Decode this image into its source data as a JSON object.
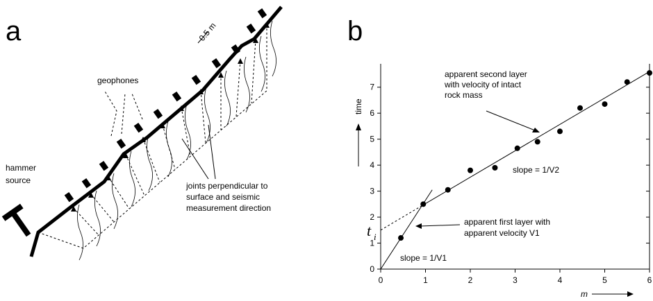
{
  "diagram": {
    "label": "a",
    "scale": "0.5 m",
    "geophones": "geophones",
    "hammer": [
      "hammer",
      "source"
    ],
    "joints": [
      "joints perpendicular to",
      "surface and seismic",
      "measurement direction"
    ]
  },
  "chart_data": {
    "type": "scatter",
    "panel_label": "b",
    "x": [
      0.45,
      0.95,
      1.5,
      2.0,
      2.55,
      3.05,
      3.5,
      4.0,
      4.45,
      5.0,
      5.5,
      6.0
    ],
    "values": [
      1.2,
      2.5,
      3.05,
      3.8,
      3.9,
      4.65,
      4.9,
      5.3,
      6.2,
      6.35,
      7.2,
      7.55
    ],
    "color": "#000000",
    "lines": [
      {
        "x": [
          0,
          1.15
        ],
        "y": [
          0,
          3.05
        ],
        "dash": false
      },
      {
        "x": [
          0,
          0.95
        ],
        "y": [
          1.5,
          2.47
        ],
        "dash": true
      },
      {
        "x": [
          0.95,
          6
        ],
        "y": [
          2.47,
          7.6
        ],
        "dash": false
      }
    ],
    "xlim": [
      0,
      6
    ],
    "ylim": [
      0,
      7.9
    ],
    "xticks": [
      0,
      1,
      2,
      3,
      4,
      5,
      6
    ],
    "yticks": [
      0,
      1,
      2,
      3,
      4,
      5,
      6,
      7
    ],
    "x_label": "m",
    "y_label": "time",
    "intercept_label": "t",
    "intercept_sub": "i",
    "annotations": {
      "second_layer": [
        "apparent second layer",
        "with velocity of intact",
        "rock mass"
      ],
      "slope2": "slope = 1/V2",
      "first_layer": [
        "apparent first layer with",
        "apparent velocity V1"
      ],
      "slope1": "slope = 1/V1"
    }
  }
}
